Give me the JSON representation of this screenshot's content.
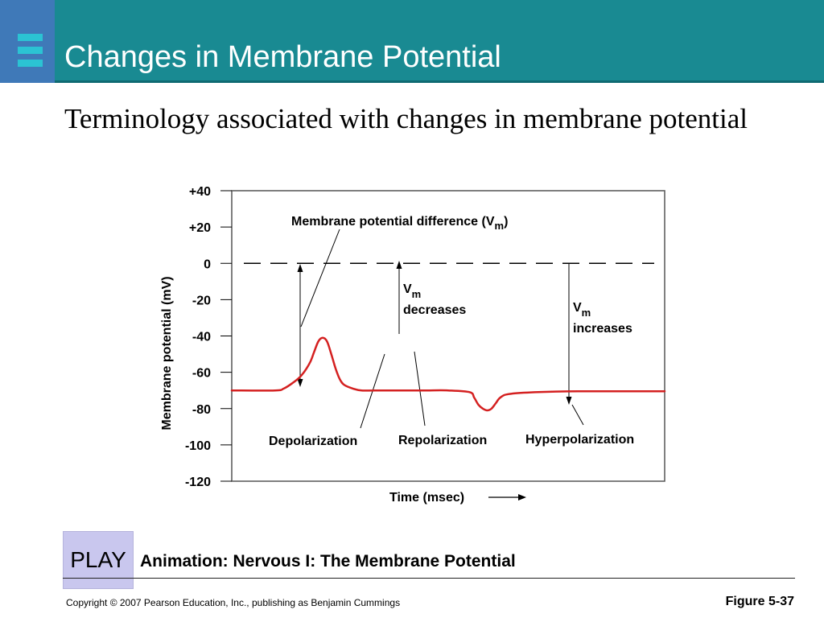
{
  "slide": {
    "title": "Changes in Membrane Potential",
    "subtitle": "Terminology associated with changes in membrane potential"
  },
  "colors": {
    "title_bar": "#198a92",
    "icon_box": "#3f79b8",
    "icon_stripes": [
      "#2bc3d3",
      "#2bc3d3",
      "#2bc3d3"
    ],
    "trace": "#d42020",
    "play_button": "#c9c7ee"
  },
  "icons": {
    "title_icon": "stacked-bars-icon"
  },
  "play_button": {
    "label": "PLAY"
  },
  "animation_caption": "Animation: Nervous I: The Membrane Potential",
  "footer": {
    "copyright": "Copyright © 2007 Pearson Education, Inc., publishing as Benjamin Cummings",
    "figure": "Figure 5-37"
  },
  "chart_data": {
    "type": "line",
    "title": "",
    "xlabel": "Time (msec)",
    "ylabel": "Membrane potential (mV)",
    "ylim": [
      -120,
      40
    ],
    "yticks": [
      40,
      20,
      0,
      -20,
      -40,
      -60,
      -80,
      -100,
      -120
    ],
    "ytick_labels": [
      "+40",
      "+20",
      "0",
      "-20",
      "-40",
      "-60",
      "-80",
      "-100",
      "-120"
    ],
    "x_ticks_shown": false,
    "grid": false,
    "reference_line": {
      "y": 0,
      "style": "dashed"
    },
    "series": [
      {
        "x": [
          0,
          10,
          12,
          14,
          16,
          18,
          19,
          20,
          21,
          22,
          23,
          24,
          25,
          26,
          28,
          30,
          35,
          40,
          45,
          50,
          55,
          56,
          57,
          58,
          59,
          60,
          61,
          62,
          64,
          70,
          80,
          100
        ],
        "values": [
          -70,
          -70,
          -69,
          -66,
          -62,
          -55,
          -49,
          -43,
          -41,
          -43,
          -50,
          -58,
          -64,
          -67,
          -69,
          -70,
          -70,
          -70,
          -70,
          -70,
          -71,
          -74,
          -78,
          -80,
          -81,
          -80,
          -77,
          -74,
          -72,
          -71,
          -70.5,
          -70.5
        ]
      }
    ],
    "annotations": [
      {
        "text": "Membrane potential difference (V",
        "subscript": "m",
        "suffix": ")"
      },
      {
        "text": "V",
        "subscript": "m",
        "line2": "decreases"
      },
      {
        "text": "V",
        "subscript": "m",
        "line2": "increases"
      },
      {
        "text": "Depolarization"
      },
      {
        "text": "Repolarization"
      },
      {
        "text": "Hyperpolarization"
      }
    ]
  }
}
